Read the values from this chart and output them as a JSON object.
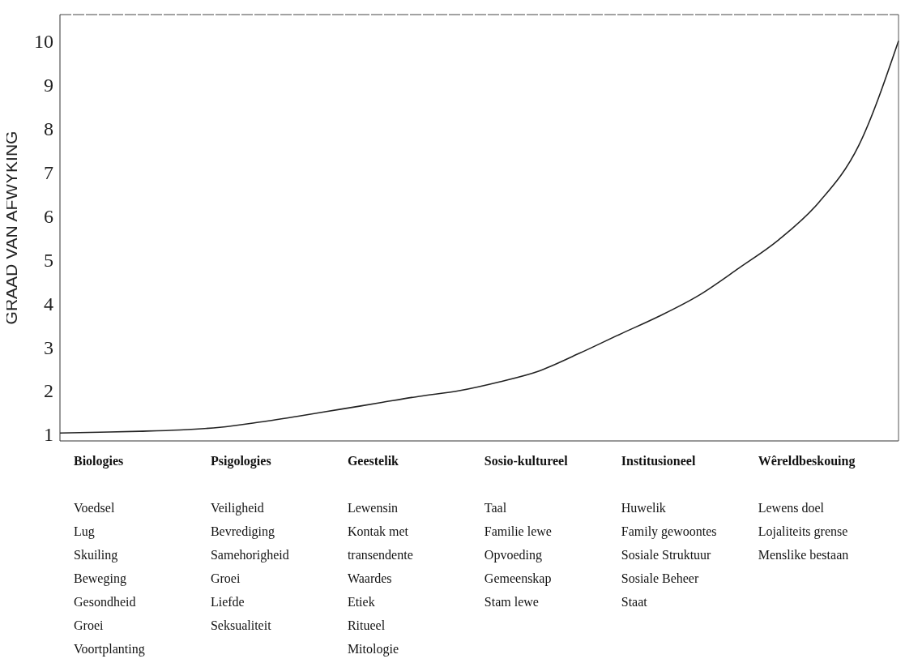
{
  "chart_data": {
    "type": "line",
    "ylabel": "GRAAD VAN AFWYKING",
    "categories": [
      null,
      null,
      null,
      null,
      null,
      null,
      null,
      null,
      null,
      null,
      null,
      null,
      null,
      null,
      null,
      null,
      null,
      null,
      null,
      null,
      null,
      null
    ],
    "series": [
      {
        "color": "#222222",
        "values": [
          1.03,
          1.05,
          1.07,
          1.1,
          1.16,
          1.28,
          1.42,
          1.57,
          1.72,
          1.87,
          2.0,
          2.2,
          2.45,
          2.85,
          3.28,
          3.7,
          4.18,
          4.8,
          5.45,
          6.3,
          7.6,
          10.0
        ]
      }
    ],
    "ylim": [
      0.85,
      10.6
    ],
    "yticks": [
      1,
      2,
      3,
      4,
      5,
      6,
      7,
      8,
      9,
      10
    ],
    "tick_labels": "y",
    "grid": false,
    "legend": false,
    "marker": "none",
    "annotations": [
      "Biologies\n\nVoedsel\nLug\nSkuiling\nBeweging\nGesondheid\nGroei\nVoortplanting",
      "Psigologies\n\nVeiligheid\nBevrediging\nSamehorigheid\nGroei\nLiefde\nSeksualiteit",
      "Geestelik\n\nLewensin\nKontak met\ntransendente\nWaardes\nEtiek\nRitueel\nMitologie",
      "Sosio-kultureel\n\nTaal\nFamilie lewe\nOpvoeding\nGemeenskap\nStam lewe",
      "Institusioneel\n\nHuwelik\nFamily gewoontes\nSosiale Struktuur\nSosiale Beheer\nStaat",
      "Wêreldbeskouing\n\nLewens doel\nLojaliteits grense\nMenslike bestaan"
    ]
  }
}
